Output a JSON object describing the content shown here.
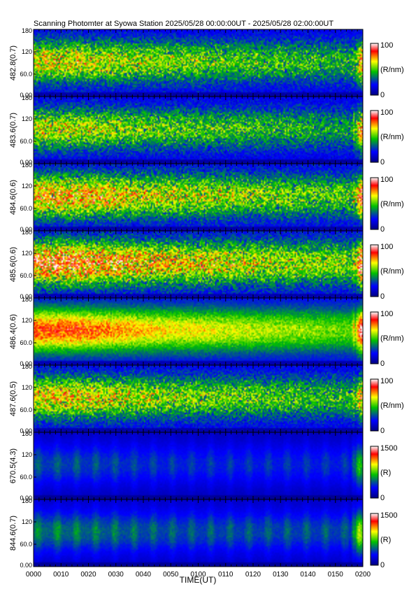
{
  "chart_data": {
    "type": "heatmap",
    "title": "Scanning Photomter at Syowa Station 2025/05/28 00:00:00UT - 2025/05/28 02:00:00UT",
    "xlabel": "TIME(UT)",
    "x_ticks": [
      "0000",
      "0010",
      "0020",
      "0030",
      "0040",
      "0050",
      "0100",
      "0110",
      "0120",
      "0130",
      "0140",
      "0150",
      "0200"
    ],
    "x_range_minutes": [
      0,
      120
    ],
    "y_range": [
      0,
      180
    ],
    "y_ticks": [
      "0.00",
      "60.0",
      "120",
      "180"
    ],
    "colormap": [
      "#000080",
      "#0000ff",
      "#00c000",
      "#ffff00",
      "#ff0000",
      "#ffffff"
    ],
    "panels": [
      {
        "ylabel": "482.8(0.7)",
        "colorbar_max": "100",
        "colorbar_min": "0",
        "colorbar_unit": "(R/nm)",
        "cmax": 100,
        "base": 26,
        "aurora_peak": 62,
        "pre_level": 34,
        "pre_fade": 10,
        "hot_peak": 0,
        "style": "noisy"
      },
      {
        "ylabel": "483.6(0.7)",
        "colorbar_max": "100",
        "colorbar_min": "0",
        "colorbar_unit": "(R/nm)",
        "cmax": 100,
        "base": 24,
        "aurora_peak": 72,
        "pre_level": 32,
        "pre_fade": 8,
        "hot_peak": 6,
        "style": "noisy"
      },
      {
        "ylabel": "484.6(0.6)",
        "colorbar_max": "100",
        "colorbar_min": "0",
        "colorbar_unit": "(R/nm)",
        "cmax": 100,
        "base": 28,
        "aurora_peak": 78,
        "pre_level": 40,
        "pre_fade": 10,
        "hot_peak": 10,
        "style": "noisy"
      },
      {
        "ylabel": "485.6(0.6)",
        "colorbar_max": "100",
        "colorbar_min": "0",
        "colorbar_unit": "(R/nm)",
        "cmax": 100,
        "base": 30,
        "aurora_peak": 86,
        "pre_level": 46,
        "pre_fade": 12,
        "hot_peak": 16,
        "style": "noisy"
      },
      {
        "ylabel": "486.4(0.6)",
        "colorbar_max": "100",
        "colorbar_min": "0",
        "colorbar_unit": "(R/nm)",
        "cmax": 100,
        "base": 30,
        "aurora_peak": 90,
        "pre_level": 46,
        "pre_fade": 12,
        "hot_peak": 30,
        "style": "smooth"
      },
      {
        "ylabel": "487.6(0.5)",
        "colorbar_max": "100",
        "colorbar_min": "0",
        "colorbar_unit": "(R/nm)",
        "cmax": 100,
        "base": 26,
        "aurora_peak": 64,
        "pre_level": 36,
        "pre_fade": 10,
        "hot_peak": 0,
        "style": "noisy"
      },
      {
        "ylabel": "670.5(4.3)",
        "colorbar_max": "1500",
        "colorbar_min": "0",
        "colorbar_unit": "(R)",
        "cmax": 1500,
        "base": 260,
        "aurora_peak": 900,
        "pre_level": 380,
        "pre_fade": 2,
        "hot_peak": 0,
        "style": "banded"
      },
      {
        "ylabel": "844.6(0.7)",
        "colorbar_max": "1500",
        "colorbar_min": "0",
        "colorbar_unit": "(R)",
        "cmax": 1500,
        "base": 300,
        "aurora_peak": 1150,
        "pre_level": 480,
        "pre_fade": 3,
        "hot_peak": 420,
        "style": "banded"
      }
    ]
  }
}
